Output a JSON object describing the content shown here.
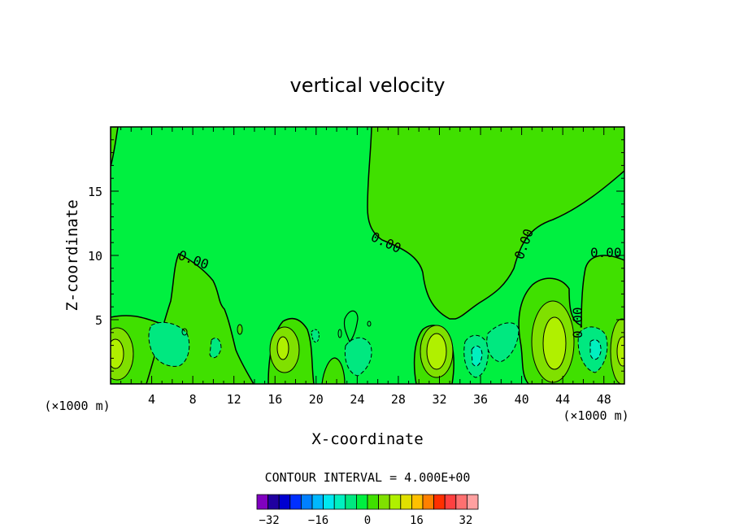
{
  "chart_data": {
    "type": "contour",
    "title": "vertical velocity",
    "xlabel": "X-coordinate",
    "ylabel": "Z-coordinate",
    "x_unit_left": "(×1000 m)",
    "x_unit_right": "(×1000 m)",
    "xlim": [
      0,
      50
    ],
    "ylim": [
      0,
      20
    ],
    "x_ticks": [
      "4",
      "8",
      "12",
      "16",
      "20",
      "24",
      "28",
      "32",
      "36",
      "40",
      "44",
      "48"
    ],
    "x_tick_values": [
      4,
      8,
      12,
      16,
      20,
      24,
      28,
      32,
      36,
      40,
      44,
      48
    ],
    "y_ticks": [
      "5",
      "10",
      "15"
    ],
    "y_tick_values": [
      5,
      10,
      15
    ],
    "contour_interval_text": "CONTOUR INTERVAL = 4.000E+00",
    "contour_labels": [
      "0.00",
      "0.00",
      "0.00",
      "0.00",
      "0.00"
    ],
    "colorbar": {
      "min": -36,
      "max": 36,
      "step": 4,
      "tick_labels": [
        "-32",
        "-16",
        "0",
        "16",
        "32"
      ],
      "tick_values": [
        -32,
        -16,
        0,
        16,
        32
      ],
      "colors": [
        "#8000c0",
        "#2000a0",
        "#0000d0",
        "#0030ff",
        "#0080ff",
        "#00b8ff",
        "#00e8f0",
        "#00f0c0",
        "#00e880",
        "#00f040",
        "#40e000",
        "#80e000",
        "#b0f000",
        "#e0e000",
        "#ffc000",
        "#ff8000",
        "#ff3000",
        "#ff4040",
        "#ff7070",
        "#ffa0a0"
      ]
    },
    "background_value_color": "#00f040",
    "grid": false
  }
}
